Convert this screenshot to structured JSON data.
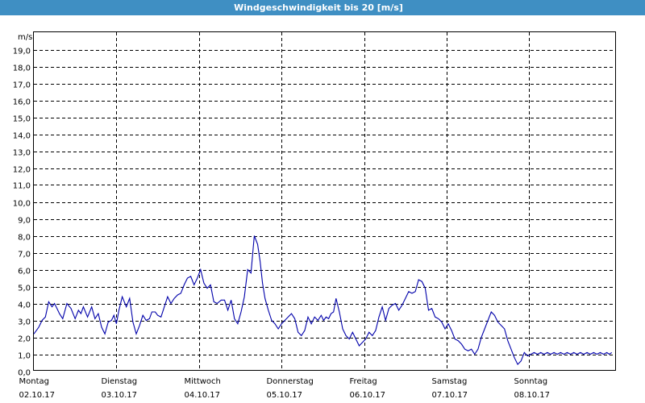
{
  "window": {
    "title": "Windgeschwindigkeit bis 20 [m/s]"
  },
  "chart_data": {
    "type": "line",
    "title": "Windgeschwindigkeit bis 20 [m/s]",
    "unit_label": "m/s",
    "ylim": [
      0,
      20
    ],
    "yticks": [
      "0,0",
      "1,0",
      "2,0",
      "3,0",
      "4,0",
      "5,0",
      "6,0",
      "7,0",
      "8,0",
      "9,0",
      "10,0",
      "11,0",
      "12,0",
      "13,0",
      "14,0",
      "15,0",
      "16,0",
      "17,0",
      "18,0",
      "19,0"
    ],
    "xlim_days": [
      0,
      7
    ],
    "days": [
      {
        "name": "Montag",
        "date": "02.10.17"
      },
      {
        "name": "Dienstag",
        "date": "03.10.17"
      },
      {
        "name": "Mittwoch",
        "date": "04.10.17"
      },
      {
        "name": "Donnerstag",
        "date": "05.10.17"
      },
      {
        "name": "Freitag",
        "date": "06.10.17"
      },
      {
        "name": "Samstag",
        "date": "07.10.17"
      },
      {
        "name": "Sonntag",
        "date": "08.10.17"
      }
    ],
    "grid": true,
    "line_color": "#0000aa",
    "series": [
      {
        "x_days": [
          0.0,
          0.03,
          0.06,
          0.1,
          0.14,
          0.18,
          0.22,
          0.25,
          0.28,
          0.31,
          0.35,
          0.4,
          0.45,
          0.5,
          0.54,
          0.57,
          0.6,
          0.65,
          0.7,
          0.74,
          0.78,
          0.82,
          0.86,
          0.9,
          0.94,
          0.97,
          1.0,
          1.03,
          1.07,
          1.12,
          1.16,
          1.2,
          1.24,
          1.28,
          1.32,
          1.36,
          1.4,
          1.43,
          1.47,
          1.5,
          1.54,
          1.58,
          1.62,
          1.66,
          1.7,
          1.74,
          1.78,
          1.82,
          1.86,
          1.9,
          1.94,
          1.98,
          2.02,
          2.06,
          2.1,
          2.14,
          2.18,
          2.22,
          2.27,
          2.31,
          2.35,
          2.39,
          2.43,
          2.47,
          2.51,
          2.55,
          2.59,
          2.63,
          2.67,
          2.71,
          2.74,
          2.77,
          2.8,
          2.84,
          2.88,
          2.92,
          2.96,
          3.0,
          3.04,
          3.08,
          3.12,
          3.16,
          3.2,
          3.24,
          3.28,
          3.32,
          3.36,
          3.4,
          3.44,
          3.48,
          3.51,
          3.54,
          3.57,
          3.6,
          3.63,
          3.66,
          3.7,
          3.74,
          3.78,
          3.82,
          3.86,
          3.9,
          3.94,
          3.98,
          4.02,
          4.06,
          4.1,
          4.14,
          4.18,
          4.22,
          4.26,
          4.3,
          4.34,
          4.38,
          4.42,
          4.46,
          4.5,
          4.54,
          4.58,
          4.62,
          4.66,
          4.7,
          4.74,
          4.78,
          4.82,
          4.86,
          4.9,
          4.94,
          4.98,
          5.02,
          5.06,
          5.1,
          5.14,
          5.18,
          5.22,
          5.26,
          5.3,
          5.34,
          5.38,
          5.42,
          5.46,
          5.5,
          5.54,
          5.58,
          5.62,
          5.66,
          5.7,
          5.74,
          5.78,
          5.82,
          5.86,
          5.9,
          5.94,
          5.98,
          6.02,
          6.06,
          6.1,
          6.14,
          6.18,
          6.22,
          6.26,
          6.3,
          6.34,
          6.38,
          6.42,
          6.46,
          6.5,
          6.54,
          6.58,
          6.62,
          6.66,
          6.7,
          6.74,
          6.78,
          6.82,
          6.86,
          6.9,
          6.94,
          6.97,
          7.0
        ],
        "values": [
          2.2,
          2.4,
          2.6,
          3.0,
          3.2,
          4.1,
          3.8,
          4.0,
          3.7,
          3.4,
          3.1,
          4.0,
          3.7,
          3.1,
          3.6,
          3.4,
          3.8,
          3.2,
          3.8,
          3.1,
          3.4,
          2.6,
          2.2,
          2.9,
          3.0,
          3.3,
          2.8,
          3.6,
          4.4,
          3.8,
          4.3,
          2.9,
          2.2,
          2.7,
          3.3,
          3.0,
          3.1,
          3.5,
          3.5,
          3.3,
          3.2,
          3.8,
          4.4,
          4.0,
          4.3,
          4.5,
          4.6,
          5.1,
          5.5,
          5.6,
          5.1,
          5.5,
          6.0,
          5.2,
          4.9,
          5.1,
          4.1,
          4.0,
          4.2,
          4.2,
          3.6,
          4.2,
          3.1,
          2.8,
          3.5,
          4.4,
          6.0,
          5.8,
          8.0,
          7.5,
          6.5,
          5.2,
          4.3,
          3.6,
          3.0,
          2.8,
          2.5,
          2.8,
          3.0,
          3.2,
          3.4,
          3.1,
          2.3,
          2.1,
          2.4,
          3.2,
          2.8,
          3.2,
          3.0,
          3.3,
          3.0,
          3.2,
          3.1,
          3.4,
          3.5,
          4.3,
          3.5,
          2.5,
          2.1,
          1.9,
          2.3,
          1.9,
          1.5,
          1.7,
          1.9,
          2.3,
          2.1,
          2.4,
          3.2,
          3.8,
          3.0,
          3.7,
          3.9,
          4.0,
          3.6,
          3.9,
          4.3,
          4.7,
          4.6,
          4.7,
          5.4,
          5.3,
          4.9,
          3.6,
          3.7,
          3.2,
          3.1,
          2.9,
          2.5,
          2.8,
          2.4,
          1.9,
          1.8,
          1.6,
          1.3,
          1.2,
          1.3,
          1.0,
          1.3,
          2.0,
          2.5,
          3.0,
          3.5,
          3.3,
          2.9,
          2.7,
          2.5,
          1.8,
          1.3,
          0.8,
          0.4,
          0.6,
          1.1,
          0.9,
          1.0,
          1.1,
          1.0,
          1.1,
          1.0,
          1.1,
          1.0,
          1.1,
          1.0,
          1.1,
          1.0,
          1.1,
          1.0,
          1.1,
          1.0,
          1.1,
          1.0,
          1.1,
          1.0,
          1.1,
          1.0,
          1.1,
          1.0,
          1.1,
          1.0,
          1.1
        ]
      }
    ]
  }
}
